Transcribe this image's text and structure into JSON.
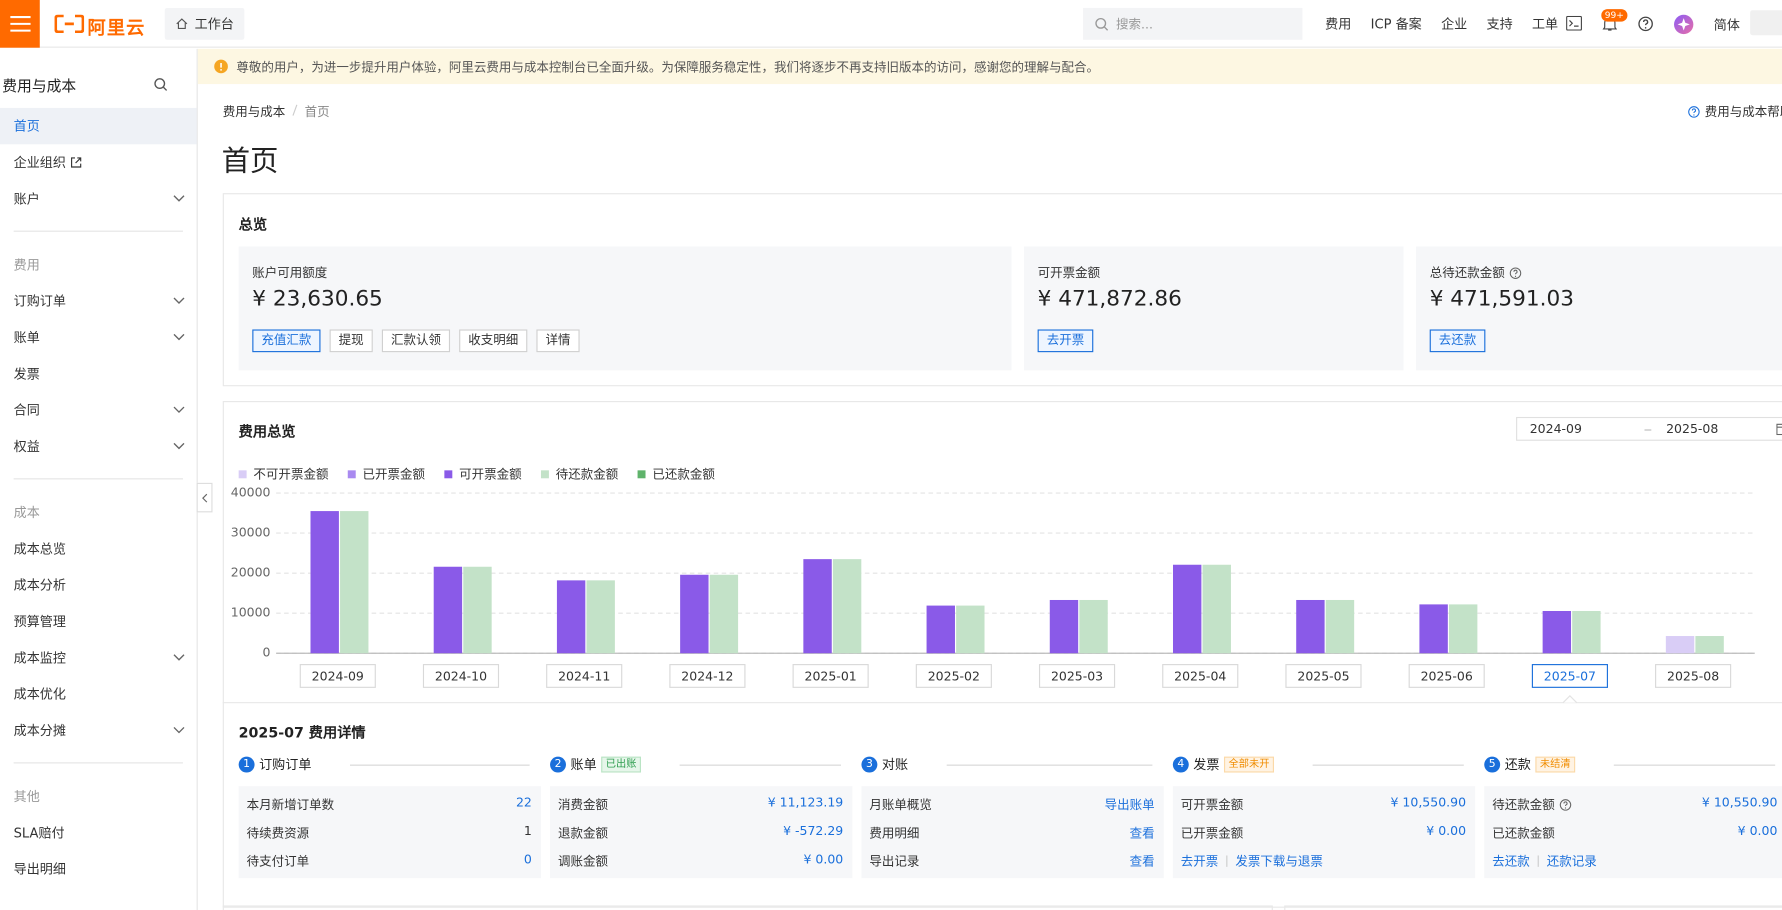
{
  "topbar": {
    "logo": "阿里云",
    "workbench": "工作台",
    "search_placeholder": "搜索...",
    "nav": [
      "费用",
      "ICP 备案",
      "企业",
      "支持",
      "工单"
    ],
    "badge": "99+",
    "lang": "简体"
  },
  "sidebar": {
    "title": "费用与成本",
    "sections": [
      {
        "items": [
          {
            "label": "首页",
            "active": true
          },
          {
            "label": "企业组织",
            "external": true
          },
          {
            "label": "账户",
            "expand": true
          }
        ]
      },
      {
        "heading": "费用",
        "items": [
          {
            "label": "订购订单",
            "expand": true
          },
          {
            "label": "账单",
            "expand": true
          },
          {
            "label": "发票"
          },
          {
            "label": "合同",
            "expand": true
          },
          {
            "label": "权益",
            "expand": true
          }
        ]
      },
      {
        "heading": "成本",
        "items": [
          {
            "label": "成本总览"
          },
          {
            "label": "成本分析"
          },
          {
            "label": "预算管理"
          },
          {
            "label": "成本监控",
            "expand": true
          },
          {
            "label": "成本优化"
          },
          {
            "label": "成本分摊",
            "expand": true
          }
        ]
      },
      {
        "heading": "其他",
        "items": [
          {
            "label": "SLA赔付"
          },
          {
            "label": "导出明细"
          }
        ]
      }
    ]
  },
  "notice": "尊敬的用户，为进一步提升用户体验，阿里云费用与成本控制台已全面升级。为保障服务稳定性，我们将逐步不再支持旧版本的访问，感谢您的理解与配合。",
  "breadcrumb": [
    "费用与成本",
    "首页"
  ],
  "help_link": "费用与成本帮助",
  "page_title": "首页",
  "overview": {
    "title": "总览",
    "cards": [
      {
        "label": "账户可用额度",
        "amount": "¥ 23,630.65",
        "buttons": [
          "充值汇款",
          "提现",
          "汇款认领",
          "收支明细",
          "详情"
        ]
      },
      {
        "label": "可开票金额",
        "amount": "¥ 471,872.86",
        "buttons": [
          "去开票"
        ]
      },
      {
        "label": "总待还款金额",
        "help": true,
        "amount": "¥ 471,591.03",
        "buttons": [
          "去还款"
        ]
      }
    ]
  },
  "chart_data": {
    "type": "bar",
    "title": "费用总览",
    "date_range": [
      "2024-09",
      "2025-08"
    ],
    "categories": [
      "2024-09",
      "2024-10",
      "2024-11",
      "2024-12",
      "2025-01",
      "2025-02",
      "2025-03",
      "2025-04",
      "2025-05",
      "2025-06",
      "2025-07",
      "2025-08"
    ],
    "selected": "2025-07",
    "series": [
      {
        "name": "不可开票金额",
        "color": "#d9cdf6",
        "values": [
          0,
          0,
          0,
          0,
          0,
          0,
          0,
          0,
          0,
          0,
          0,
          4300
        ]
      },
      {
        "name": "已开票金额",
        "color": "#a98af0",
        "values": [
          0,
          0,
          0,
          0,
          0,
          0,
          0,
          0,
          0,
          0,
          0,
          0
        ]
      },
      {
        "name": "可开票金额",
        "color": "#8a5ae8",
        "values": [
          35500,
          21600,
          18200,
          19600,
          23500,
          11900,
          13300,
          22100,
          13300,
          12200,
          10550.9,
          0
        ]
      },
      {
        "name": "待还款金额",
        "color": "#c3e2c8",
        "values": [
          35500,
          21600,
          18200,
          19600,
          23500,
          11900,
          13300,
          22100,
          13300,
          12200,
          10550.9,
          4300
        ]
      },
      {
        "name": "已还款金额",
        "color": "#5fb36b",
        "values": [
          0,
          0,
          0,
          0,
          0,
          0,
          0,
          0,
          0,
          0,
          0,
          0
        ]
      }
    ],
    "ylim": [
      0,
      40000
    ],
    "yticks": [
      0,
      10000,
      20000,
      30000,
      40000
    ],
    "grid": true
  },
  "details": {
    "title": "2025-07 费用详情",
    "steps": [
      {
        "number": 1,
        "title": "订购订单",
        "rows": [
          {
            "label": "本月新增订单数",
            "value": "22",
            "link": true
          },
          {
            "label": "待续费资源",
            "value": "1"
          },
          {
            "label": "待支付订单",
            "value": "0",
            "link": true
          }
        ]
      },
      {
        "number": 2,
        "title": "账单",
        "tag": "已出账",
        "tag_color": "green",
        "rows": [
          {
            "label": "消费金额",
            "value": "¥ 11,123.19",
            "link": true
          },
          {
            "label": "退款金额",
            "value": "¥ -572.29",
            "link": true
          },
          {
            "label": "调账金额",
            "value": "¥ 0.00",
            "link": true
          }
        ]
      },
      {
        "number": 3,
        "title": "对账",
        "rows": [
          {
            "label": "月账单概览",
            "value": "导出账单",
            "link": true
          },
          {
            "label": "费用明细",
            "value": "查看",
            "link": true
          },
          {
            "label": "导出记录",
            "value": "查看",
            "link": true
          }
        ]
      },
      {
        "number": 4,
        "title": "发票",
        "tag": "全部未开",
        "tag_color": "orange",
        "rows": [
          {
            "label": "可开票金额",
            "value": "¥ 10,550.90",
            "link": true
          },
          {
            "label": "已开票金额",
            "value": "¥ 0.00",
            "link": true
          }
        ],
        "links": [
          "去开票",
          "发票下载与退票"
        ]
      },
      {
        "number": 5,
        "title": "还款",
        "tag": "未结清",
        "tag_color": "orange",
        "rows": [
          {
            "label": "待还款金额",
            "help": true,
            "value": "¥ 10,550.90",
            "link": true
          },
          {
            "label": "已还款金额",
            "value": "¥ 0.00",
            "link": true
          }
        ],
        "links": [
          "去还款",
          "还款记录"
        ]
      }
    ]
  }
}
